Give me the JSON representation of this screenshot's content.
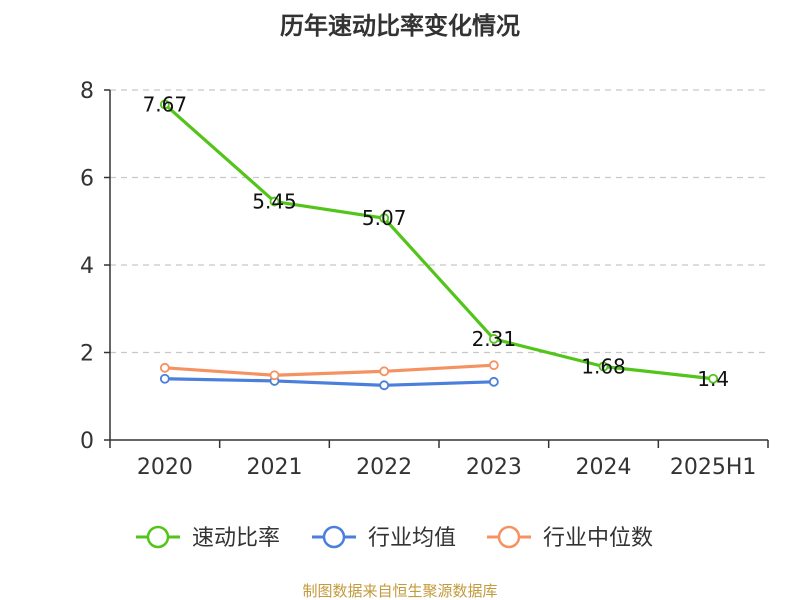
{
  "chart_data": {
    "type": "line",
    "title": "历年速动比率变化情况",
    "categories": [
      "2020",
      "2021",
      "2022",
      "2023",
      "2024",
      "2025H1"
    ],
    "ylim": [
      0,
      8
    ],
    "yticks": [
      "0",
      "2",
      "4",
      "6",
      "8"
    ],
    "grid": true,
    "legend_position": "bottom",
    "series": [
      {
        "name": "速动比率",
        "color": "#52c41a",
        "values": [
          7.67,
          5.45,
          5.07,
          2.31,
          1.68,
          1.4
        ],
        "labels": [
          "7.67",
          "5.45",
          "5.07",
          "2.31",
          "1.68",
          "1.4"
        ]
      },
      {
        "name": "行业均值",
        "color": "#4a7fdc",
        "values": [
          1.4,
          1.35,
          1.25,
          1.33,
          null,
          null
        ]
      },
      {
        "name": "行业中位数",
        "color": "#f59262",
        "values": [
          1.65,
          1.48,
          1.57,
          1.71,
          null,
          null
        ]
      }
    ]
  },
  "source": "制图数据来自恒生聚源数据库"
}
